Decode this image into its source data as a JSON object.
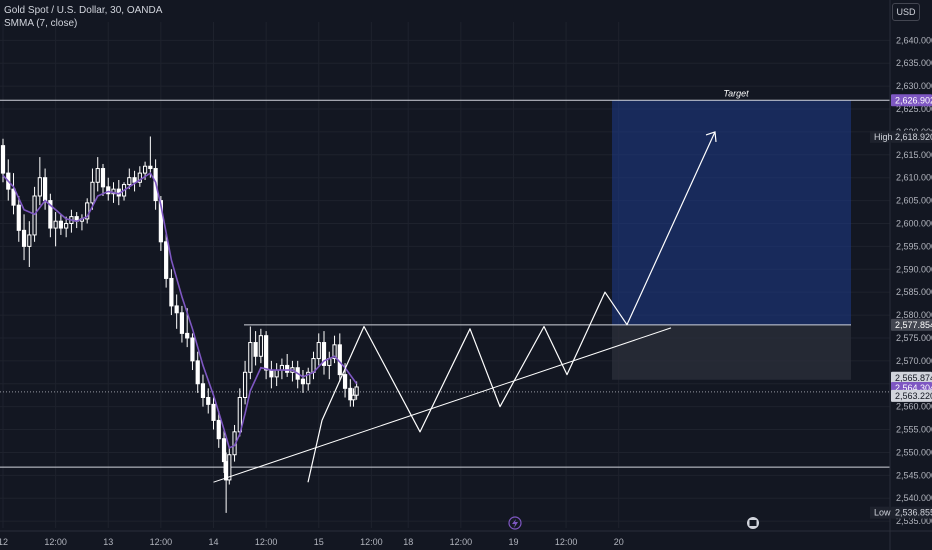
{
  "legend": {
    "symbol": "Gold Spot / U.S. Dollar, 30, OANDA",
    "indicator": "SMMA (7, close)"
  },
  "currency_button": "USD",
  "colors": {
    "background": "#131722",
    "grid": "#1e222d",
    "candle": "#ffffff",
    "smma": "#7e57c2",
    "target_box": "#1e3a8a",
    "stop_box": "#2a2e39",
    "current_price_tag": "#7e57c2"
  },
  "chart_data": {
    "type": "candlestick",
    "title": "",
    "y_ticks": [
      "2,535.000",
      "2,540.000",
      "2,545.000",
      "2,550.000",
      "2,555.000",
      "2,560.000",
      "2,565.000",
      "2,570.000",
      "2,575.000",
      "2,580.000",
      "2,585.000",
      "2,590.000",
      "2,595.000",
      "2,600.000",
      "2,605.000",
      "2,610.000",
      "2,615.000",
      "2,620.000",
      "2,625.000",
      "2,630.000",
      "2,635.000",
      "2,640.000"
    ],
    "x_ticks": [
      "12",
      "12:00",
      "13",
      "12:00",
      "14",
      "12:00",
      "15",
      "12:00",
      "18",
      "12:00",
      "19",
      "12:00",
      "20"
    ],
    "ylim": [
      2533.5,
      2644
    ],
    "price_tags": [
      {
        "label": "2,626.902",
        "value": 2626.902,
        "style": "purple"
      },
      {
        "label": "2,618.920",
        "value": 2618.92,
        "style": "dark",
        "prefix": "High"
      },
      {
        "label": "2,577.854",
        "value": 2577.854,
        "style": "gray"
      },
      {
        "label": "2,565.874",
        "value": 2565.874,
        "style": "light"
      },
      {
        "label": "2,564.304",
        "value": 2564.304,
        "style": "purple"
      },
      {
        "label": "2,563.220",
        "value": 2563.22,
        "style": "light"
      },
      {
        "label": "2,536.855",
        "value": 2536.855,
        "style": "dark",
        "prefix": "Low"
      }
    ],
    "target_label": "Target",
    "horizontal_levels": [
      2626.902,
      2577.854,
      2546.8
    ],
    "target_zone": {
      "top": 2626.902,
      "bottom": 2577.854
    },
    "stop_zone": {
      "top": 2577.854,
      "bottom": 2565.874
    },
    "trendline": [
      [
        14.0,
        2543.5
      ],
      [
        19.8,
        2577.2
      ]
    ],
    "pattern_path": [
      [
        14.0,
        2543.5
      ],
      [
        14.25,
        2557
      ],
      [
        14.6,
        2577.5
      ],
      [
        15.2,
        2554.5
      ],
      [
        15.6,
        2577
      ],
      [
        15.9,
        2560
      ],
      [
        16.2,
        2577.5
      ],
      [
        16.45,
        2567
      ],
      [
        16.75,
        2585
      ],
      [
        17.0,
        2577.9
      ],
      [
        17.5,
        2620
      ]
    ],
    "candles": [
      [
        12.0,
        2617.0,
        2618.5,
        2609.0,
        2611.0
      ],
      [
        12.05,
        2611.0,
        2614.0,
        2605.0,
        2607.5
      ],
      [
        12.1,
        2607.5,
        2611.0,
        2602.0,
        2604.0
      ],
      [
        12.15,
        2604.0,
        2606.0,
        2596.0,
        2598.5
      ],
      [
        12.2,
        2598.5,
        2602.0,
        2592.0,
        2595.0
      ],
      [
        12.25,
        2595.0,
        2600.5,
        2590.5,
        2597.5
      ],
      [
        12.3,
        2597.5,
        2608.0,
        2596.0,
        2606.0
      ],
      [
        12.35,
        2606.0,
        2614.5,
        2604.0,
        2610.0
      ],
      [
        12.4,
        2610.0,
        2612.0,
        2603.0,
        2605.0
      ],
      [
        12.45,
        2605.0,
        2606.5,
        2597.0,
        2599.0
      ],
      [
        12.5,
        2599.0,
        2602.5,
        2595.0,
        2600.5
      ],
      [
        12.55,
        2600.5,
        2602.0,
        2597.5,
        2599.0
      ],
      [
        12.6,
        2599.0,
        2601.5,
        2597.0,
        2600.0
      ],
      [
        12.65,
        2600.0,
        2603.0,
        2598.0,
        2601.5
      ],
      [
        12.7,
        2601.5,
        2602.5,
        2599.0,
        2600.5
      ],
      [
        12.75,
        2600.5,
        2602.0,
        2598.5,
        2601.0
      ],
      [
        12.8,
        2601.0,
        2605.5,
        2600.0,
        2604.5
      ],
      [
        12.85,
        2604.5,
        2612.0,
        2603.0,
        2609.0
      ],
      [
        12.9,
        2609.0,
        2614.5,
        2607.0,
        2612.0
      ],
      [
        12.95,
        2612.0,
        2613.0,
        2606.0,
        2608.0
      ],
      [
        13.0,
        2608.0,
        2610.0,
        2605.0,
        2606.5
      ],
      [
        13.05,
        2606.5,
        2609.0,
        2604.5,
        2607.5
      ],
      [
        13.1,
        2607.5,
        2609.5,
        2604.0,
        2606.0
      ],
      [
        13.15,
        2606.0,
        2609.0,
        2605.0,
        2608.5
      ],
      [
        13.2,
        2608.5,
        2612.0,
        2607.5,
        2610.0
      ],
      [
        13.25,
        2610.0,
        2611.5,
        2607.0,
        2609.0
      ],
      [
        13.3,
        2609.0,
        2612.5,
        2608.0,
        2611.0
      ],
      [
        13.35,
        2611.0,
        2613.5,
        2609.5,
        2612.5
      ],
      [
        13.4,
        2612.5,
        2619.0,
        2610.0,
        2612.0
      ],
      [
        13.45,
        2612.0,
        2614.0,
        2603.0,
        2605.0
      ],
      [
        13.5,
        2605.0,
        2606.0,
        2594.0,
        2596.0
      ],
      [
        13.55,
        2596.0,
        2598.0,
        2586.0,
        2588.0
      ],
      [
        13.6,
        2588.0,
        2590.0,
        2580.0,
        2582.0
      ],
      [
        13.65,
        2582.0,
        2584.5,
        2577.0,
        2580.5
      ],
      [
        13.7,
        2580.5,
        2582.0,
        2574.0,
        2576.0
      ],
      [
        13.75,
        2576.0,
        2581.5,
        2573.0,
        2575.0
      ],
      [
        13.8,
        2575.0,
        2576.0,
        2568.0,
        2570.0
      ],
      [
        13.85,
        2570.0,
        2572.0,
        2563.0,
        2565.0
      ],
      [
        13.9,
        2565.0,
        2567.0,
        2560.0,
        2562.0
      ],
      [
        13.95,
        2562.0,
        2564.0,
        2558.5,
        2560.5
      ],
      [
        14.0,
        2560.5,
        2562.0,
        2555.0,
        2557.0
      ],
      [
        14.05,
        2557.0,
        2559.0,
        2551.0,
        2553.0
      ],
      [
        14.1,
        2553.0,
        2555.0,
        2545.5,
        2548.0
      ],
      [
        14.12,
        2548.0,
        2550.0,
        2536.8,
        2544.0
      ],
      [
        14.15,
        2544.0,
        2551.0,
        2543.0,
        2549.5
      ],
      [
        14.2,
        2549.5,
        2556.0,
        2548.0,
        2554.5
      ],
      [
        14.25,
        2554.5,
        2564.0,
        2553.5,
        2562.0
      ],
      [
        14.3,
        2562.0,
        2570.0,
        2560.5,
        2567.5
      ],
      [
        14.35,
        2567.5,
        2577.5,
        2566.0,
        2574.0
      ],
      [
        14.4,
        2574.0,
        2576.5,
        2569.0,
        2571.0
      ],
      [
        14.45,
        2571.0,
        2577.0,
        2569.5,
        2575.5
      ],
      [
        14.5,
        2575.5,
        2576.5,
        2566.0,
        2568.0
      ],
      [
        14.55,
        2568.0,
        2570.0,
        2564.0,
        2566.5
      ],
      [
        14.6,
        2566.5,
        2569.5,
        2564.5,
        2568.0
      ],
      [
        14.65,
        2568.0,
        2570.5,
        2566.0,
        2569.0
      ],
      [
        14.7,
        2569.0,
        2571.5,
        2566.5,
        2567.5
      ],
      [
        14.75,
        2567.5,
        2570.0,
        2565.5,
        2568.5
      ],
      [
        14.8,
        2568.5,
        2570.0,
        2564.0,
        2566.0
      ],
      [
        14.85,
        2566.0,
        2568.0,
        2563.0,
        2565.0
      ],
      [
        14.9,
        2565.0,
        2568.5,
        2563.5,
        2567.5
      ],
      [
        14.95,
        2567.5,
        2572.0,
        2566.0,
        2570.5
      ],
      [
        15.0,
        2570.5,
        2576.0,
        2569.0,
        2574.0
      ],
      [
        15.05,
        2574.0,
        2576.5,
        2567.0,
        2569.0
      ],
      [
        15.1,
        2569.0,
        2572.0,
        2566.0,
        2570.5
      ],
      [
        15.15,
        2570.5,
        2575.5,
        2569.5,
        2573.5
      ],
      [
        15.2,
        2573.5,
        2576.0,
        2565.5,
        2567.0
      ],
      [
        15.25,
        2567.0,
        2569.5,
        2562.0,
        2564.0
      ],
      [
        15.3,
        2564.0,
        2566.0,
        2560.0,
        2561.5
      ],
      [
        15.33,
        2561.5,
        2564.0,
        2560.0,
        2562.5
      ],
      [
        15.36,
        2562.5,
        2565.5,
        2561.5,
        2564.3
      ]
    ],
    "smma": [
      [
        12.0,
        2610.5
      ],
      [
        12.1,
        2608.0
      ],
      [
        12.2,
        2603.0
      ],
      [
        12.3,
        2602.0
      ],
      [
        12.4,
        2605.0
      ],
      [
        12.5,
        2603.0
      ],
      [
        12.6,
        2601.0
      ],
      [
        12.7,
        2600.5
      ],
      [
        12.8,
        2601.5
      ],
      [
        12.9,
        2606.0
      ],
      [
        13.0,
        2607.0
      ],
      [
        13.1,
        2606.5
      ],
      [
        13.2,
        2608.0
      ],
      [
        13.3,
        2609.5
      ],
      [
        13.4,
        2611.0
      ],
      [
        13.45,
        2609.0
      ],
      [
        13.5,
        2604.0
      ],
      [
        13.55,
        2598.0
      ],
      [
        13.6,
        2592.0
      ],
      [
        13.7,
        2584.0
      ],
      [
        13.8,
        2577.0
      ],
      [
        13.9,
        2569.0
      ],
      [
        14.0,
        2562.5
      ],
      [
        14.1,
        2555.0
      ],
      [
        14.15,
        2551.0
      ],
      [
        14.2,
        2551.5
      ],
      [
        14.25,
        2554.0
      ],
      [
        14.3,
        2558.5
      ],
      [
        14.35,
        2563.5
      ],
      [
        14.45,
        2568.5
      ],
      [
        14.55,
        2568.0
      ],
      [
        14.65,
        2568.0
      ],
      [
        14.75,
        2568.0
      ],
      [
        14.85,
        2566.5
      ],
      [
        14.95,
        2567.5
      ],
      [
        15.05,
        2570.0
      ],
      [
        15.15,
        2571.0
      ],
      [
        15.25,
        2568.5
      ],
      [
        15.36,
        2565.0
      ]
    ]
  }
}
